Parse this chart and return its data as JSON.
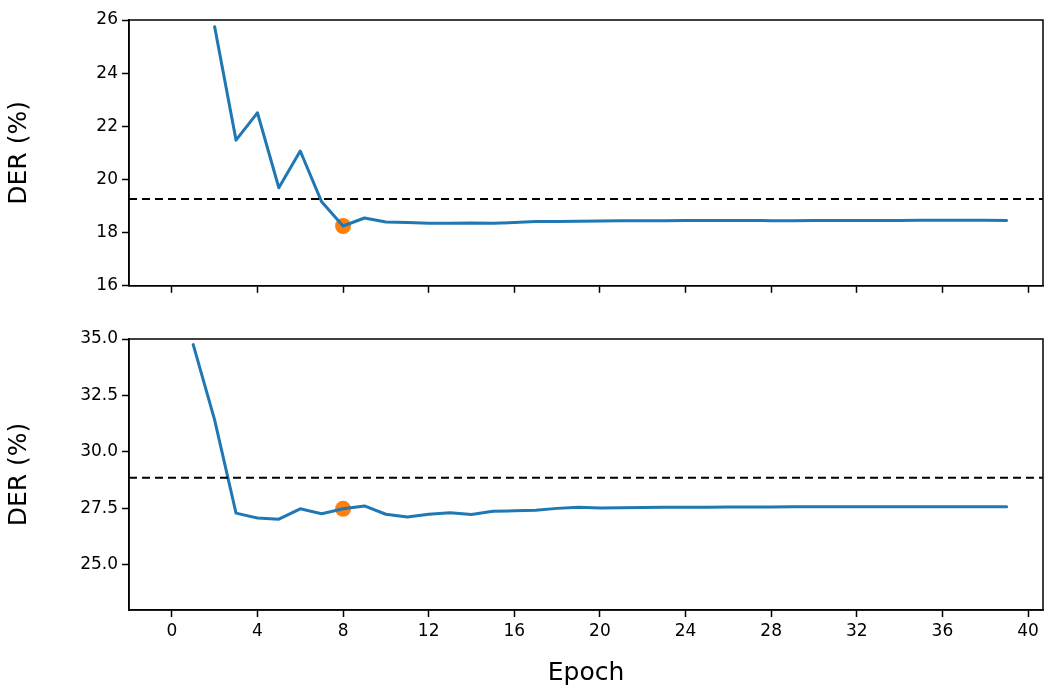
{
  "chart_data": [
    {
      "type": "line",
      "ylabel": "DER (%)",
      "xlim": [
        -2,
        40.7
      ],
      "xticks": [
        0,
        4,
        8,
        12,
        16,
        20,
        24,
        28,
        32,
        36,
        40
      ],
      "ylim": [
        16,
        26
      ],
      "yticks": [
        16,
        18,
        20,
        22,
        24,
        26
      ],
      "tick_labels": "y",
      "grid": false,
      "legend": false,
      "series": [
        {
          "color": "#1f77b4",
          "marker": "none",
          "x": [
            2,
            3,
            4,
            5,
            6,
            7,
            8,
            9,
            10,
            11,
            12,
            13,
            14,
            15,
            16,
            17,
            18,
            19,
            20,
            21,
            22,
            23,
            24,
            25,
            26,
            27,
            28,
            29,
            30,
            31,
            32,
            33,
            34,
            35,
            36,
            37,
            38,
            39
          ],
          "values": [
            25.75,
            21.48,
            22.51,
            19.69,
            21.07,
            19.16,
            18.25,
            18.55,
            18.4,
            18.38,
            18.35,
            18.35,
            18.36,
            18.35,
            18.38,
            18.42,
            18.42,
            18.43,
            18.44,
            18.45,
            18.45,
            18.45,
            18.46,
            18.46,
            18.46,
            18.46,
            18.45,
            18.45,
            18.46,
            18.46,
            18.46,
            18.46,
            18.46,
            18.47,
            18.47,
            18.47,
            18.47,
            18.46
          ]
        },
        {
          "type": "scatter",
          "color": "#ff7f0e",
          "marker": "circle",
          "x": [
            8
          ],
          "values": [
            18.25
          ]
        }
      ],
      "ref_lines": [
        {
          "axis": "y",
          "value": 19.27,
          "color": "#000000",
          "line_style": "dashed"
        }
      ]
    },
    {
      "type": "line",
      "xlabel": "Epoch",
      "ylabel": "DER (%)",
      "xlim": [
        -2,
        40.7
      ],
      "xticks": [
        0,
        4,
        8,
        12,
        16,
        20,
        24,
        28,
        32,
        36,
        40
      ],
      "ylim": [
        23,
        35
      ],
      "yticks": [
        {
          "value": 25,
          "label": "25.0"
        },
        {
          "value": 27.5,
          "label": "27.5"
        },
        {
          "value": 30,
          "label": "30.0"
        },
        {
          "value": 32.5,
          "label": "32.5"
        },
        {
          "value": 35,
          "label": "35.0"
        }
      ],
      "grid": false,
      "legend": false,
      "series": [
        {
          "color": "#1f77b4",
          "marker": "none",
          "x": [
            1,
            2,
            3,
            4,
            5,
            6,
            7,
            8,
            9,
            10,
            11,
            12,
            13,
            14,
            15,
            16,
            17,
            18,
            19,
            20,
            21,
            22,
            23,
            24,
            25,
            26,
            27,
            28,
            29,
            30,
            31,
            32,
            33,
            34,
            35,
            36,
            37,
            38,
            39
          ],
          "values": [
            34.75,
            31.42,
            27.29,
            27.07,
            27.02,
            27.48,
            27.26,
            27.48,
            27.61,
            27.24,
            27.12,
            27.24,
            27.31,
            27.23,
            27.37,
            27.39,
            27.42,
            27.5,
            27.55,
            27.52,
            27.53,
            27.54,
            27.55,
            27.55,
            27.55,
            27.56,
            27.56,
            27.56,
            27.57,
            27.57,
            27.57,
            27.57,
            27.57,
            27.57,
            27.57,
            27.57,
            27.57,
            27.57,
            27.57
          ]
        },
        {
          "type": "scatter",
          "color": "#ff7f0e",
          "marker": "circle",
          "x": [
            8
          ],
          "values": [
            27.48
          ]
        }
      ],
      "ref_lines": [
        {
          "axis": "y",
          "value": 28.86,
          "color": "#000000",
          "line_style": "dashed"
        }
      ]
    }
  ]
}
